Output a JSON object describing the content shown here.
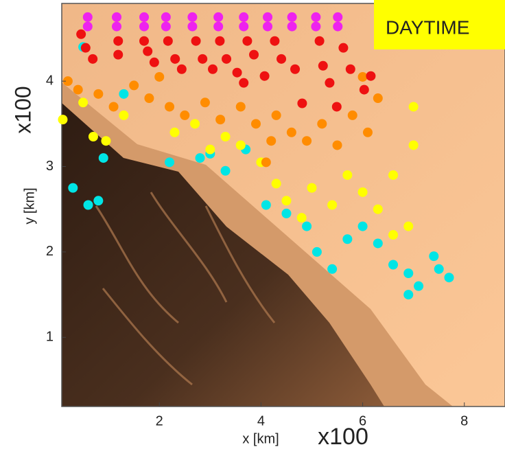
{
  "chart_data": {
    "type": "scatter",
    "annotation": "DAYTIME",
    "x_label": "x [km]",
    "x_multiplier": "x100",
    "y_label": "y [km]",
    "y_multiplier": "x100",
    "xlim": [
      0.08,
      8.8
    ],
    "ylim": [
      0.19,
      4.91
    ],
    "xticks": [
      2,
      4,
      6,
      8
    ],
    "yticks": [
      1,
      2,
      3,
      4
    ],
    "series": [
      {
        "color": "#00e5e5",
        "x": [
          0.5,
          0.3,
          0.6,
          0.8,
          0.9,
          1.3,
          2.2,
          2.8,
          3.0,
          3.3,
          3.7,
          4.1,
          4.5,
          4.9,
          5.1,
          5.4,
          5.7,
          6.0,
          6.3,
          6.6,
          6.9,
          7.1,
          7.4,
          7.7,
          7.5,
          6.9
        ],
        "y": [
          4.4,
          2.75,
          2.55,
          2.6,
          3.1,
          3.85,
          3.05,
          3.1,
          3.15,
          2.95,
          3.2,
          2.55,
          2.45,
          2.3,
          2.0,
          1.8,
          2.15,
          2.3,
          2.1,
          1.85,
          1.75,
          1.6,
          1.95,
          1.7,
          1.8,
          1.5
        ]
      },
      {
        "color": "#ffff00",
        "x": [
          0.1,
          0.5,
          0.7,
          0.95,
          1.3,
          2.3,
          2.7,
          3.0,
          3.3,
          3.6,
          4.3,
          4.5,
          4.8,
          5.0,
          5.4,
          5.7,
          6.0,
          6.3,
          6.6,
          6.9,
          7.0,
          7.0,
          6.6,
          4.0
        ],
        "y": [
          3.55,
          3.75,
          3.35,
          3.3,
          3.6,
          3.4,
          3.5,
          3.2,
          3.35,
          3.25,
          2.8,
          2.6,
          2.4,
          2.75,
          2.55,
          2.9,
          2.7,
          2.5,
          2.9,
          2.3,
          3.25,
          3.7,
          2.2,
          3.05
        ]
      },
      {
        "color": "#ff8c00",
        "x": [
          0.2,
          0.4,
          0.8,
          1.5,
          1.8,
          2.2,
          2.5,
          2.9,
          3.2,
          3.6,
          3.9,
          4.2,
          4.3,
          4.1,
          4.6,
          4.9,
          5.2,
          5.5,
          5.8,
          6.1,
          6.3,
          6.0,
          2.0,
          1.1
        ],
        "y": [
          4.0,
          3.9,
          3.85,
          3.95,
          3.8,
          3.7,
          3.6,
          3.75,
          3.55,
          3.7,
          3.5,
          3.3,
          3.6,
          3.05,
          3.4,
          3.3,
          3.5,
          3.25,
          3.6,
          3.4,
          3.8,
          4.05,
          4.05,
          3.7
        ]
      },
      {
        "color": "#ee1111",
        "x": [
          0.46,
          0.55,
          0.69,
          1.19,
          1.19,
          1.7,
          1.77,
          1.9,
          2.17,
          2.31,
          2.44,
          2.72,
          2.85,
          3.05,
          3.19,
          3.32,
          3.53,
          3.66,
          3.73,
          3.86,
          4.07,
          4.27,
          4.4,
          4.67,
          4.81,
          5.15,
          5.22,
          5.35,
          5.49,
          5.62,
          5.76,
          6.03,
          6.16
        ],
        "y": [
          4.55,
          4.39,
          4.26,
          4.47,
          4.31,
          4.47,
          4.35,
          4.22,
          4.47,
          4.26,
          4.14,
          4.47,
          4.26,
          4.14,
          4.47,
          4.26,
          4.1,
          3.98,
          4.47,
          4.31,
          4.06,
          4.47,
          4.26,
          4.14,
          3.74,
          4.47,
          4.18,
          3.98,
          3.7,
          4.39,
          4.14,
          3.9,
          4.06
        ]
      },
      {
        "color": "#ee22ee",
        "x": [
          0.59,
          0.59,
          1.16,
          1.16,
          1.7,
          1.7,
          2.13,
          2.13,
          2.65,
          2.65,
          3.16,
          3.16,
          3.66,
          3.66,
          4.13,
          4.13,
          4.61,
          4.61,
          5.08,
          5.08,
          5.51,
          5.51
        ],
        "y": [
          4.75,
          4.64,
          4.75,
          4.64,
          4.75,
          4.64,
          4.75,
          4.64,
          4.75,
          4.64,
          4.75,
          4.64,
          4.75,
          4.64,
          4.75,
          4.64,
          4.75,
          4.64,
          4.75,
          4.64,
          4.75,
          4.64
        ]
      }
    ]
  }
}
